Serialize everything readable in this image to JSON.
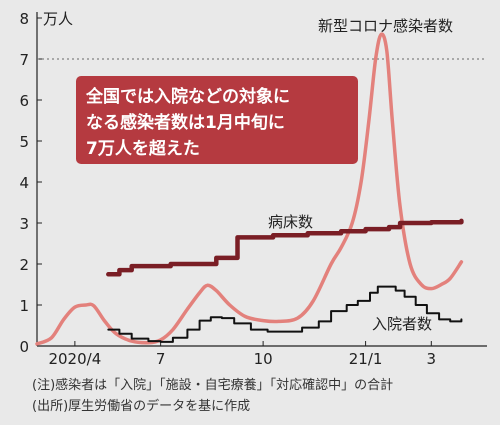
{
  "chart_data": {
    "type": "line",
    "y_unit": "万人",
    "ylim": [
      0,
      8
    ],
    "yticks": [
      0,
      1,
      2,
      3,
      4,
      5,
      6,
      7,
      8
    ],
    "xlim": [
      "2020-03-12",
      "2021-04-20"
    ],
    "xtick_labels": [
      {
        "date": "2020-04-15",
        "label": "2020/4"
      },
      {
        "date": "2020-07-01",
        "label": "7"
      },
      {
        "date": "2020-10-01",
        "label": "10"
      },
      {
        "date": "2021-01-01",
        "label": "21/1"
      },
      {
        "date": "2021-03-01",
        "label": "3"
      }
    ],
    "reference_line": {
      "y": 7,
      "style": "dotted"
    },
    "grid": false,
    "series": [
      {
        "name": "新型コロナ感染者数",
        "color": "#e3817c",
        "points": [
          [
            "2020-03-12",
            0.05
          ],
          [
            "2020-03-25",
            0.2
          ],
          [
            "2020-04-05",
            0.65
          ],
          [
            "2020-04-15",
            0.95
          ],
          [
            "2020-04-25",
            1.0
          ],
          [
            "2020-05-02",
            0.98
          ],
          [
            "2020-05-12",
            0.6
          ],
          [
            "2020-05-22",
            0.3
          ],
          [
            "2020-06-05",
            0.12
          ],
          [
            "2020-06-20",
            0.08
          ],
          [
            "2020-07-01",
            0.15
          ],
          [
            "2020-07-12",
            0.4
          ],
          [
            "2020-07-25",
            0.9
          ],
          [
            "2020-08-05",
            1.3
          ],
          [
            "2020-08-12",
            1.48
          ],
          [
            "2020-08-20",
            1.35
          ],
          [
            "2020-09-01",
            1.0
          ],
          [
            "2020-09-15",
            0.72
          ],
          [
            "2020-10-01",
            0.62
          ],
          [
            "2020-10-15",
            0.6
          ],
          [
            "2020-11-01",
            0.68
          ],
          [
            "2020-11-15",
            1.1
          ],
          [
            "2020-12-01",
            2.0
          ],
          [
            "2020-12-10",
            2.4
          ],
          [
            "2020-12-20",
            3.0
          ],
          [
            "2020-12-28",
            4.0
          ],
          [
            "2021-01-04",
            5.5
          ],
          [
            "2021-01-10",
            7.0
          ],
          [
            "2021-01-15",
            7.6
          ],
          [
            "2021-01-20",
            7.2
          ],
          [
            "2021-01-25",
            5.5
          ],
          [
            "2021-02-01",
            3.4
          ],
          [
            "2021-02-10",
            2.0
          ],
          [
            "2021-02-20",
            1.5
          ],
          [
            "2021-03-01",
            1.4
          ],
          [
            "2021-03-10",
            1.5
          ],
          [
            "2021-03-18",
            1.65
          ],
          [
            "2021-03-28",
            2.05
          ]
        ]
      },
      {
        "name": "病床数",
        "color": "#7a1e25",
        "step": true,
        "points": [
          [
            "2020-05-15",
            1.75
          ],
          [
            "2020-05-25",
            1.85
          ],
          [
            "2020-06-05",
            1.95
          ],
          [
            "2020-07-01",
            1.95
          ],
          [
            "2020-07-10",
            2.0
          ],
          [
            "2020-08-10",
            2.0
          ],
          [
            "2020-08-20",
            2.15
          ],
          [
            "2020-09-01",
            2.15
          ],
          [
            "2020-09-08",
            2.65
          ],
          [
            "2020-10-10",
            2.7
          ],
          [
            "2020-11-10",
            2.75
          ],
          [
            "2020-12-10",
            2.8
          ],
          [
            "2021-01-01",
            2.85
          ],
          [
            "2021-01-10",
            2.85
          ],
          [
            "2021-01-22",
            2.9
          ],
          [
            "2021-02-01",
            3.0
          ],
          [
            "2021-03-01",
            3.02
          ],
          [
            "2021-03-28",
            3.05
          ]
        ]
      },
      {
        "name": "入院者数",
        "color": "#111111",
        "step": true,
        "points": [
          [
            "2020-05-15",
            0.4
          ],
          [
            "2020-05-25",
            0.3
          ],
          [
            "2020-06-05",
            0.18
          ],
          [
            "2020-06-20",
            0.12
          ],
          [
            "2020-07-01",
            0.1
          ],
          [
            "2020-07-12",
            0.2
          ],
          [
            "2020-07-25",
            0.4
          ],
          [
            "2020-08-05",
            0.62
          ],
          [
            "2020-08-15",
            0.7
          ],
          [
            "2020-08-25",
            0.68
          ],
          [
            "2020-09-05",
            0.55
          ],
          [
            "2020-09-20",
            0.4
          ],
          [
            "2020-10-05",
            0.35
          ],
          [
            "2020-10-20",
            0.35
          ],
          [
            "2020-11-05",
            0.45
          ],
          [
            "2020-11-20",
            0.6
          ],
          [
            "2020-12-01",
            0.85
          ],
          [
            "2020-12-15",
            1.0
          ],
          [
            "2020-12-25",
            1.1
          ],
          [
            "2021-01-05",
            1.3
          ],
          [
            "2021-01-12",
            1.45
          ],
          [
            "2021-01-20",
            1.45
          ],
          [
            "2021-01-28",
            1.35
          ],
          [
            "2021-02-05",
            1.2
          ],
          [
            "2021-02-15",
            1.0
          ],
          [
            "2021-02-25",
            0.8
          ],
          [
            "2021-03-08",
            0.65
          ],
          [
            "2021-03-18",
            0.6
          ],
          [
            "2021-03-28",
            0.65
          ]
        ]
      }
    ],
    "callout": {
      "lines": [
        "全国では入院などの対象に",
        "なる感染者数は1月中旬に",
        "7万人を超えた"
      ],
      "color": "#b53a40"
    },
    "notes": [
      "(注)感染者は「入院」「施設・自宅療養」「対応確認中」の合計",
      "(出所)厚生労働省のデータを基に作成"
    ]
  }
}
